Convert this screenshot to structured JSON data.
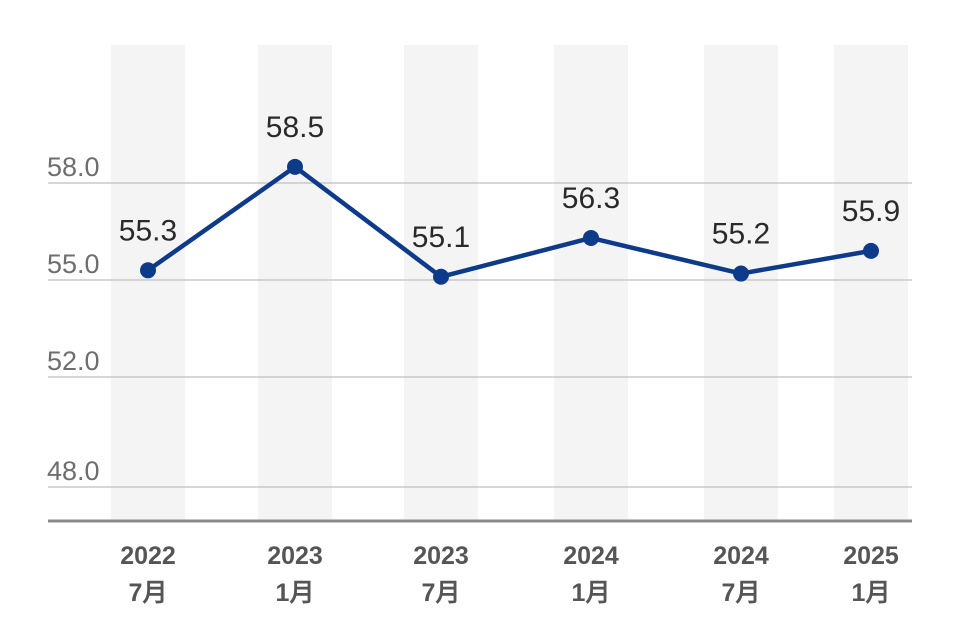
{
  "chart_data": {
    "type": "line",
    "title": "",
    "xlabel": "",
    "ylabel": "",
    "categories": [
      {
        "year": "2022",
        "month": "7月"
      },
      {
        "year": "2023",
        "month": "1月"
      },
      {
        "year": "2023",
        "month": "7月"
      },
      {
        "year": "2024",
        "month": "1月"
      },
      {
        "year": "2024",
        "month": "7月"
      },
      {
        "year": "2025",
        "month": "1月"
      }
    ],
    "values": [
      55.3,
      58.5,
      55.1,
      56.3,
      55.2,
      55.9
    ],
    "value_labels": [
      "55.3",
      "58.5",
      "55.1",
      "56.3",
      "55.2",
      "55.9"
    ],
    "y_ticks": [
      {
        "value": 48.0,
        "label": "48.0"
      },
      {
        "value": 52.0,
        "label": "52.0"
      },
      {
        "value": 55.0,
        "label": "55.0"
      },
      {
        "value": 58.0,
        "label": "58.0"
      }
    ],
    "grid": true,
    "legend": "none",
    "colors": {
      "line": "#0d3b8a",
      "band": "#f4f4f4",
      "grid": "#c8c8c8",
      "axis": "#8a8a8a"
    }
  }
}
